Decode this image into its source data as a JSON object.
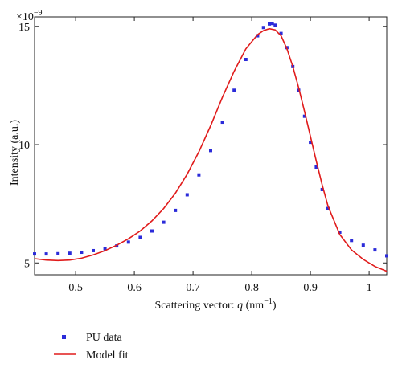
{
  "chart_data": {
    "type": "scatter",
    "title": "",
    "xlabel_prefix": "Scattering vector: ",
    "xlabel_var": "q",
    "xlabel_unit": " (nm",
    "xlabel_exp": "−1",
    "xlabel_close": ")",
    "ylabel": "Intensity (a.u.)",
    "y_multiplier": "×10",
    "y_multiplier_exp": "−9",
    "xlim": [
      0.43,
      1.03
    ],
    "ylim": [
      4.5,
      15.4
    ],
    "x_ticks": [
      0.5,
      0.6,
      0.7,
      0.8,
      0.9,
      1.0
    ],
    "x_tick_labels": [
      "0.5",
      "0.6",
      "0.7",
      "0.8",
      "0.9",
      "1"
    ],
    "y_ticks": [
      5,
      10,
      15
    ],
    "y_tick_labels": [
      "5",
      "10",
      "15"
    ],
    "grid": false,
    "legend_position": "below",
    "series": [
      {
        "name": "PU data",
        "kind": "points",
        "color": "#2b2bd9",
        "x": [
          0.43,
          0.45,
          0.47,
          0.49,
          0.51,
          0.53,
          0.55,
          0.57,
          0.59,
          0.61,
          0.63,
          0.65,
          0.67,
          0.69,
          0.71,
          0.73,
          0.75,
          0.77,
          0.79,
          0.81,
          0.82,
          0.83,
          0.835,
          0.84,
          0.85,
          0.86,
          0.87,
          0.88,
          0.89,
          0.9,
          0.91,
          0.92,
          0.93,
          0.95,
          0.97,
          0.99,
          1.01,
          1.03
        ],
        "y": [
          5.38,
          5.38,
          5.39,
          5.41,
          5.45,
          5.52,
          5.6,
          5.72,
          5.88,
          6.08,
          6.35,
          6.72,
          7.22,
          7.88,
          8.72,
          9.75,
          10.95,
          12.3,
          13.6,
          14.6,
          14.95,
          15.1,
          15.12,
          15.05,
          14.7,
          14.1,
          13.3,
          12.3,
          11.2,
          10.1,
          9.05,
          8.1,
          7.3,
          6.3,
          5.95,
          5.75,
          5.55,
          5.3
        ]
      },
      {
        "name": "Model fit",
        "kind": "line",
        "color": "#e01b1b",
        "x": [
          0.43,
          0.45,
          0.47,
          0.49,
          0.51,
          0.53,
          0.55,
          0.57,
          0.59,
          0.61,
          0.63,
          0.65,
          0.67,
          0.69,
          0.71,
          0.73,
          0.75,
          0.77,
          0.79,
          0.81,
          0.82,
          0.83,
          0.84,
          0.85,
          0.86,
          0.87,
          0.88,
          0.89,
          0.9,
          0.91,
          0.92,
          0.93,
          0.95,
          0.97,
          0.99,
          1.01,
          1.03
        ],
        "y": [
          5.18,
          5.12,
          5.1,
          5.12,
          5.2,
          5.34,
          5.52,
          5.75,
          6.02,
          6.35,
          6.78,
          7.3,
          7.95,
          8.75,
          9.7,
          10.8,
          12.0,
          13.1,
          14.05,
          14.65,
          14.82,
          14.9,
          14.85,
          14.6,
          14.05,
          13.3,
          12.4,
          11.4,
          10.35,
          9.3,
          8.3,
          7.4,
          6.2,
          5.55,
          5.15,
          4.85,
          4.65
        ]
      }
    ]
  }
}
